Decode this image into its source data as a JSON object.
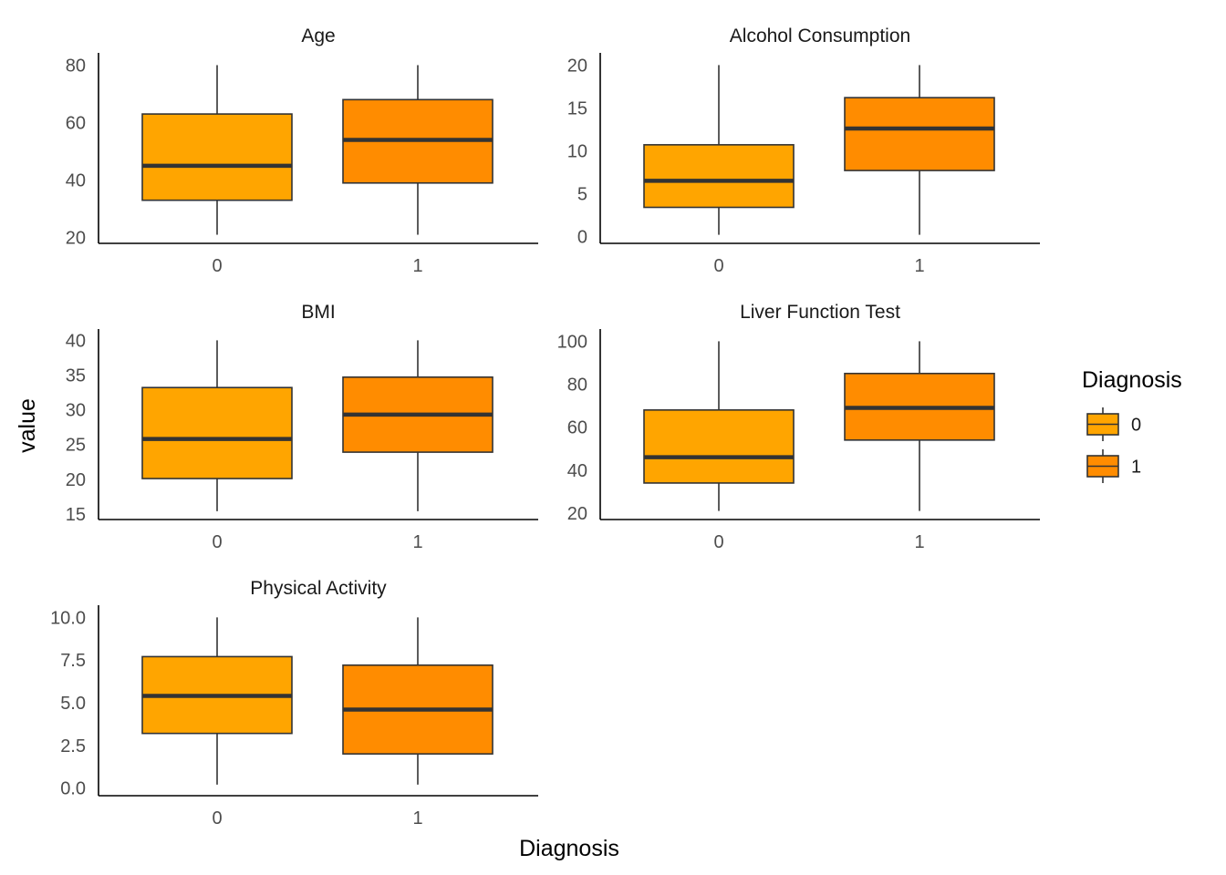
{
  "chart_data": {
    "type": "boxplot",
    "xlabel": "Diagnosis",
    "ylabel": "value",
    "legend": {
      "title": "Diagnosis",
      "placement": "right",
      "entries": [
        {
          "label": "0",
          "color": "#FFA500"
        },
        {
          "label": "1",
          "color": "#FF8C00"
        }
      ]
    },
    "colors": {
      "box_edge": "#333333",
      "median": "#333333",
      "axis": "#000000"
    },
    "categories": [
      "0",
      "1"
    ],
    "panels": [
      {
        "title": "Age",
        "ylim": [
          18,
          83
        ],
        "yticks": [
          20,
          40,
          60,
          80
        ],
        "ytick_labels": [
          "20",
          "40",
          "60",
          "80"
        ],
        "boxes": [
          {
            "group": "0",
            "min": 21,
            "q1": 33,
            "median": 45,
            "q3": 63,
            "max": 80
          },
          {
            "group": "1",
            "min": 21,
            "q1": 39,
            "median": 54,
            "q3": 68,
            "max": 80
          }
        ]
      },
      {
        "title": "Alcohol Consumption",
        "ylim": [
          -0.8,
          21
        ],
        "yticks": [
          0,
          5,
          10,
          15,
          20
        ],
        "ytick_labels": [
          "0",
          "5",
          "10",
          "15",
          "20"
        ],
        "boxes": [
          {
            "group": "0",
            "min": 0.2,
            "q1": 3.4,
            "median": 6.5,
            "q3": 10.7,
            "max": 20
          },
          {
            "group": "1",
            "min": 0.2,
            "q1": 7.7,
            "median": 12.6,
            "q3": 16.2,
            "max": 20
          }
        ]
      },
      {
        "title": "BMI",
        "ylim": [
          14.2,
          41.1
        ],
        "yticks": [
          15,
          20,
          25,
          30,
          35,
          40
        ],
        "ytick_labels": [
          "15",
          "20",
          "25",
          "30",
          "35",
          "40"
        ],
        "boxes": [
          {
            "group": "0",
            "min": 15.4,
            "q1": 20.1,
            "median": 25.8,
            "q3": 33.2,
            "max": 40
          },
          {
            "group": "1",
            "min": 15.4,
            "q1": 23.9,
            "median": 29.3,
            "q3": 34.7,
            "max": 40
          }
        ]
      },
      {
        "title": "Liver Function Test",
        "ylim": [
          17,
          104
        ],
        "yticks": [
          20,
          40,
          60,
          80,
          100
        ],
        "ytick_labels": [
          "20",
          "40",
          "60",
          "80",
          "100"
        ],
        "boxes": [
          {
            "group": "0",
            "min": 21,
            "q1": 34,
            "median": 46,
            "q3": 68,
            "max": 100
          },
          {
            "group": "1",
            "min": 21,
            "q1": 54,
            "median": 69,
            "q3": 85,
            "max": 100
          }
        ]
      },
      {
        "title": "Physical Activity",
        "ylim": [
          -0.45,
          10.5
        ],
        "yticks": [
          0.0,
          2.5,
          5.0,
          7.5,
          10.0
        ],
        "ytick_labels": [
          "0.0",
          "2.5",
          "5.0",
          "7.5",
          "10.0"
        ],
        "boxes": [
          {
            "group": "0",
            "min": 0.2,
            "q1": 3.2,
            "median": 5.4,
            "q3": 7.7,
            "max": 10
          },
          {
            "group": "1",
            "min": 0.2,
            "q1": 2.0,
            "median": 4.6,
            "q3": 7.2,
            "max": 10
          }
        ]
      }
    ]
  }
}
